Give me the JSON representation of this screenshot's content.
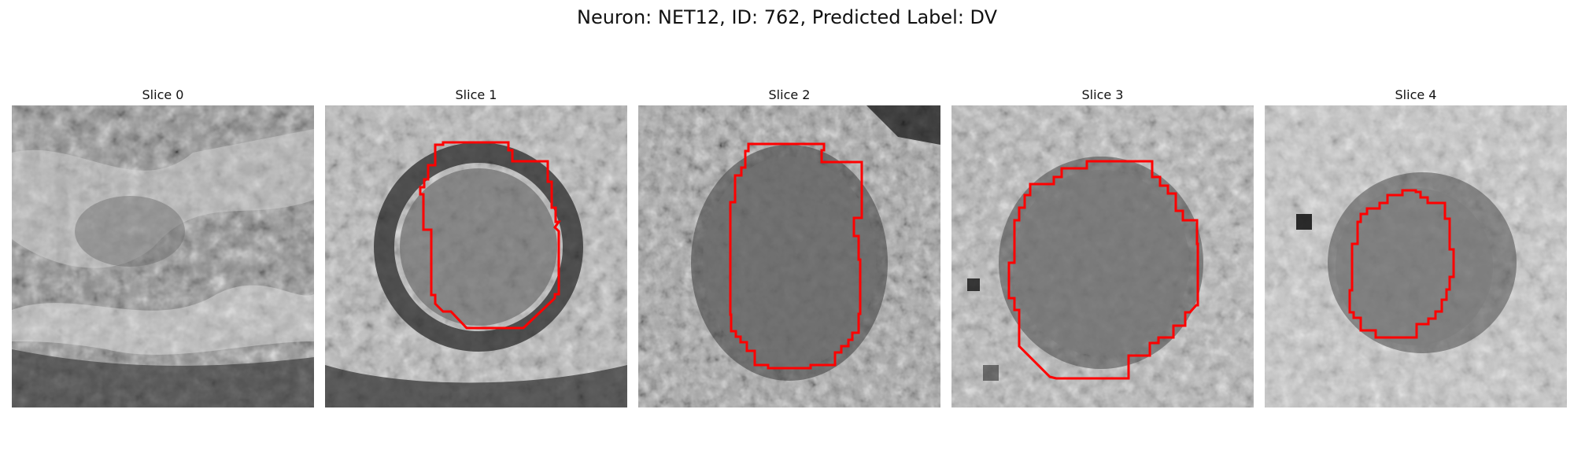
{
  "figure": {
    "title": "Neuron: NET12, ID: 762, Predicted Label: DV"
  },
  "panels": [
    {
      "title": "Slice 0",
      "has_outline": false
    },
    {
      "title": "Slice 1",
      "has_outline": true
    },
    {
      "title": "Slice 2",
      "has_outline": true
    },
    {
      "title": "Slice 3",
      "has_outline": true
    },
    {
      "title": "Slice 4",
      "has_outline": true
    }
  ],
  "colors": {
    "outline": "#ff0000",
    "background": "#ffffff"
  }
}
